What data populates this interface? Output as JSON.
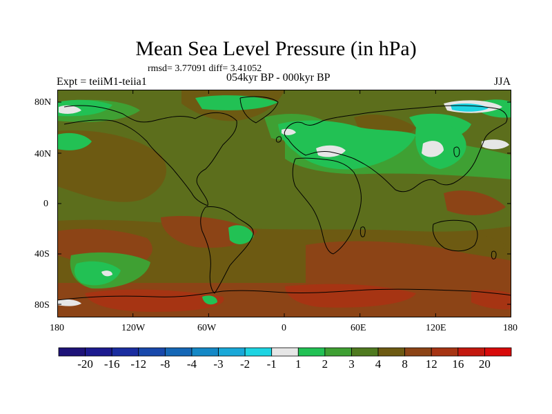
{
  "title": "Mean Sea Level Pressure (in hPa)",
  "stats": "rmsd= 3.77091 diff= 3.41052",
  "experiment": "Expt = teiiM1-teiia1",
  "period": "054kyr BP - 000kyr BP",
  "season": "JJA",
  "lat_labels": [
    "80N",
    "40N",
    "0",
    "40S",
    "80S"
  ],
  "lon_labels": [
    "180",
    "120W",
    "60W",
    "0",
    "60E",
    "120E",
    "180"
  ],
  "colorbar": {
    "labels": [
      "-20",
      "-16",
      "-12",
      "-8",
      "-4",
      "-3",
      "-2",
      "-1",
      "1",
      "2",
      "3",
      "4",
      "8",
      "12",
      "16",
      "20"
    ],
    "colors": [
      "#1d1278",
      "#1c1a8f",
      "#1a2da0",
      "#1848ab",
      "#1567b6",
      "#1488c6",
      "#19a8d8",
      "#1dd4e2",
      "#e6e6e6",
      "#22c154",
      "#3fa033",
      "#4f7a1f",
      "#6d5a12",
      "#8c4416",
      "#a63413",
      "#c3180e",
      "#d80a0a"
    ]
  },
  "map_colors": {
    "base": "#5c6e1c",
    "level_4": "#6d5a12",
    "level_8": "#8c4416",
    "level_12": "#a63413",
    "level_2": "#22c154",
    "level_3": "#3fa033",
    "level_1": "#e6e6e6",
    "level_m1": "#1dd4e2"
  }
}
